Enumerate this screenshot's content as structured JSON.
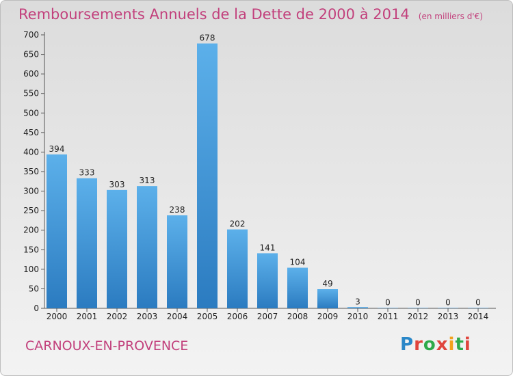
{
  "chart_data": {
    "type": "bar",
    "title": "Remboursements Annuels de la Dette de 2000 à 2014",
    "subtitle": "(en milliers d'€)",
    "categories": [
      "2000",
      "2001",
      "2002",
      "2003",
      "2004",
      "2005",
      "2006",
      "2007",
      "2008",
      "2009",
      "2010",
      "2011",
      "2012",
      "2013",
      "2014"
    ],
    "values": [
      394,
      333,
      303,
      313,
      238,
      678,
      202,
      141,
      104,
      49,
      3,
      0,
      0,
      0,
      0
    ],
    "ylim": [
      0,
      700
    ],
    "yticks": [
      0,
      50,
      100,
      150,
      200,
      250,
      300,
      350,
      400,
      450,
      500,
      550,
      600,
      650,
      700
    ],
    "grid": false,
    "colors": {
      "bar_top": "#5cb0ea",
      "bar_bottom": "#2b7bc0",
      "title": "#c2407c"
    }
  },
  "footer": {
    "city": "CARNOUX-EN-PROVENCE",
    "logo": "Proxiti"
  }
}
